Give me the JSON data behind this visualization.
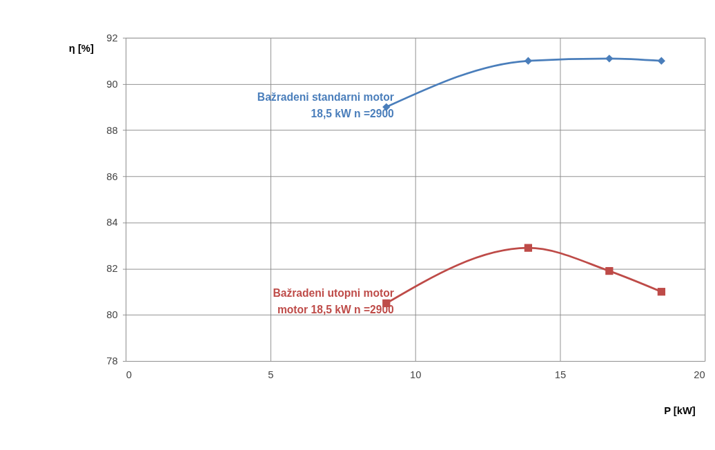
{
  "chart_data": {
    "type": "line",
    "xlabel": "P [kW]",
    "ylabel": "η [%]",
    "x": [
      9,
      13.9,
      16.7,
      18.5
    ],
    "series": [
      {
        "name": "Bažradeni standarni motor\n18,5 kW  n =2900",
        "color": "#4a7ebb",
        "marker": "diamond",
        "values": [
          89.0,
          91.0,
          91.1,
          91.0
        ]
      },
      {
        "name": "Bažradeni  utopni motor\nmotor 18,5 kW  n =2900",
        "color": "#be4b48",
        "marker": "square",
        "values": [
          80.5,
          82.9,
          81.9,
          81.0
        ]
      }
    ],
    "xlim": [
      0,
      20
    ],
    "xticks": [
      0,
      5,
      10,
      15,
      20
    ],
    "ylim": [
      78,
      92
    ],
    "yticks": [
      78,
      80,
      82,
      84,
      86,
      88,
      90,
      92
    ],
    "grid": true,
    "line_style": "solid"
  }
}
